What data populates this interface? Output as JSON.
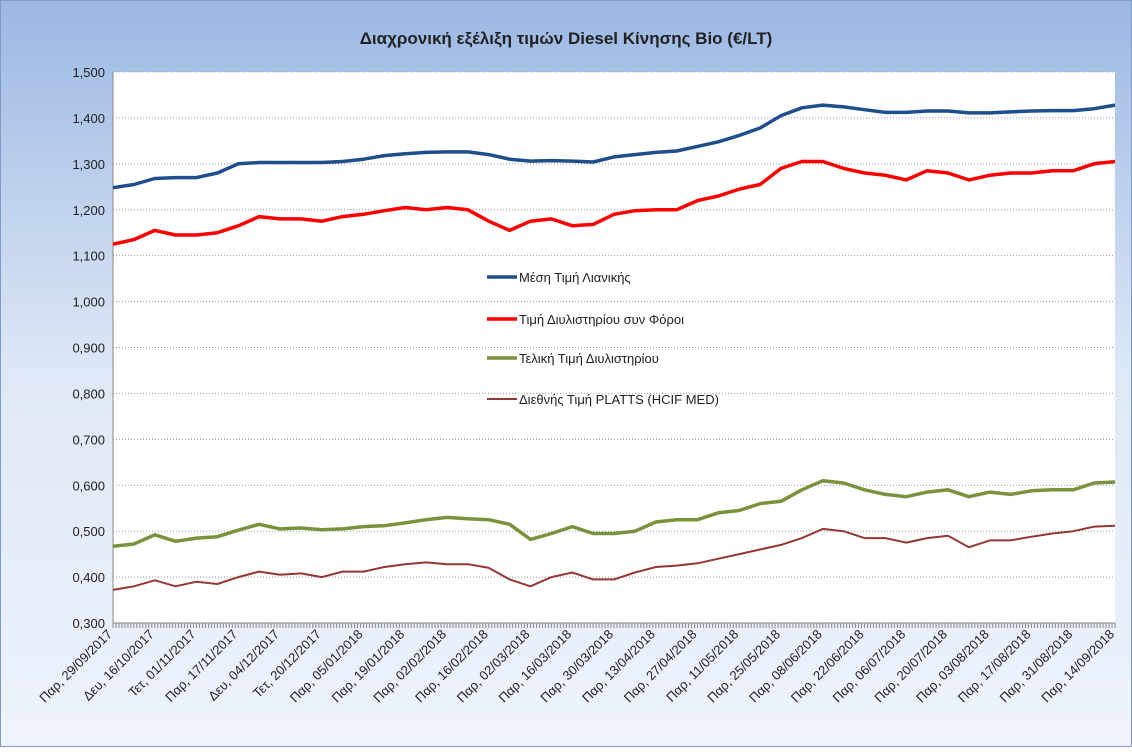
{
  "chart_data": {
    "type": "line",
    "title": "Διαχρονική εξέλιξη τιμών Diesel Κίνησης Bio (€/LT)",
    "categories": [
      "Παρ, 29/09/2017",
      null,
      "Δευ, 16/10/2017",
      null,
      "Τετ, 01/11/2017",
      null,
      "Παρ, 17/11/2017",
      null,
      "Δευ, 04/12/2017",
      null,
      "Τετ, 20/12/2017",
      null,
      "Παρ, 05/01/2018",
      null,
      "Παρ, 19/01/2018",
      null,
      "Παρ, 02/02/2018",
      null,
      "Παρ, 16/02/2018",
      null,
      "Παρ, 02/03/2018",
      null,
      "Παρ, 16/03/2018",
      null,
      "Παρ, 30/03/2018",
      null,
      "Παρ, 13/04/2018",
      null,
      "Παρ, 27/04/2018",
      null,
      "Παρ, 11/05/2018",
      null,
      "Παρ, 25/05/2018",
      null,
      "Παρ, 08/06/2018",
      null,
      "Παρ, 22/06/2018",
      null,
      "Παρ, 06/07/2018",
      null,
      "Παρ, 20/07/2018",
      null,
      "Παρ, 03/08/2018",
      null,
      "Παρ, 17/08/2018",
      null,
      "Παρ, 31/08/2018",
      null,
      "Παρ, 14/09/2018"
    ],
    "series": [
      {
        "name": "Μέση Τιμή Λιανικής",
        "color": "#1f4e8c",
        "values": [
          1.248,
          1.255,
          1.268,
          1.27,
          1.27,
          1.28,
          1.3,
          1.303,
          1.303,
          1.303,
          1.303,
          1.305,
          1.31,
          1.318,
          1.322,
          1.325,
          1.326,
          1.326,
          1.32,
          1.31,
          1.306,
          1.307,
          1.306,
          1.304,
          1.315,
          1.32,
          1.325,
          1.328,
          1.338,
          1.348,
          1.362,
          1.378,
          1.405,
          1.422,
          1.428,
          1.424,
          1.418,
          1.412,
          1.412,
          1.415,
          1.415,
          1.411,
          1.411,
          1.413,
          1.415,
          1.416,
          1.416,
          1.42,
          1.428
        ]
      },
      {
        "name": "Τιμή Διυλιστηρίου συν Φόροι",
        "color": "#ff0000",
        "values": [
          1.125,
          1.135,
          1.155,
          1.145,
          1.145,
          1.15,
          1.165,
          1.185,
          1.18,
          1.18,
          1.175,
          1.185,
          1.19,
          1.198,
          1.205,
          1.2,
          1.205,
          1.2,
          1.175,
          1.155,
          1.175,
          1.18,
          1.165,
          1.168,
          1.19,
          1.198,
          1.2,
          1.2,
          1.22,
          1.23,
          1.245,
          1.255,
          1.29,
          1.305,
          1.305,
          1.29,
          1.28,
          1.275,
          1.265,
          1.285,
          1.28,
          1.265,
          1.275,
          1.28,
          1.28,
          1.285,
          1.285,
          1.3,
          1.305
        ]
      },
      {
        "name": "Τελική Τιμή Διυλιστηρίου",
        "color": "#77933c",
        "values": [
          0.467,
          0.472,
          0.492,
          0.478,
          0.485,
          0.488,
          0.502,
          0.515,
          0.505,
          0.507,
          0.503,
          0.505,
          0.51,
          0.512,
          0.518,
          0.525,
          0.53,
          0.527,
          0.525,
          0.515,
          0.482,
          0.495,
          0.51,
          0.495,
          0.495,
          0.5,
          0.52,
          0.525,
          0.525,
          0.54,
          0.545,
          0.56,
          0.565,
          0.59,
          0.61,
          0.605,
          0.59,
          0.58,
          0.575,
          0.585,
          0.59,
          0.575,
          0.585,
          0.58,
          0.588,
          0.59,
          0.59,
          0.605,
          0.607
        ]
      },
      {
        "name": "Διεθνής Τιμή PLATTS (HCIF MED)",
        "color": "#953735",
        "values": [
          0.372,
          0.38,
          0.393,
          0.38,
          0.39,
          0.385,
          0.4,
          0.412,
          0.405,
          0.408,
          0.4,
          0.412,
          0.412,
          0.422,
          0.428,
          0.432,
          0.428,
          0.428,
          0.42,
          0.395,
          0.38,
          0.4,
          0.41,
          0.395,
          0.395,
          0.41,
          0.422,
          0.425,
          0.43,
          0.44,
          0.45,
          0.46,
          0.47,
          0.485,
          0.505,
          0.5,
          0.485,
          0.485,
          0.475,
          0.485,
          0.49,
          0.465,
          0.48,
          0.48,
          0.488,
          0.495,
          0.5,
          0.51,
          0.512
        ]
      }
    ],
    "ylim": [
      0.3,
      1.5
    ],
    "yticks": [
      {
        "value": 0.3,
        "label": "0,300"
      },
      {
        "value": 0.4,
        "label": "0,400"
      },
      {
        "value": 0.5,
        "label": "0,500"
      },
      {
        "value": 0.6,
        "label": "0,600"
      },
      {
        "value": 0.7,
        "label": "0,700"
      },
      {
        "value": 0.8,
        "label": "0,800"
      },
      {
        "value": 0.9,
        "label": "0,900"
      },
      {
        "value": 1.0,
        "label": "1,000"
      },
      {
        "value": 1.1,
        "label": "1,100"
      },
      {
        "value": 1.2,
        "label": "1,200"
      },
      {
        "value": 1.3,
        "label": "1,300"
      },
      {
        "value": 1.4,
        "label": "1,400"
      },
      {
        "value": 1.5,
        "label": "1,500"
      }
    ],
    "grid": true,
    "legend": "center"
  }
}
